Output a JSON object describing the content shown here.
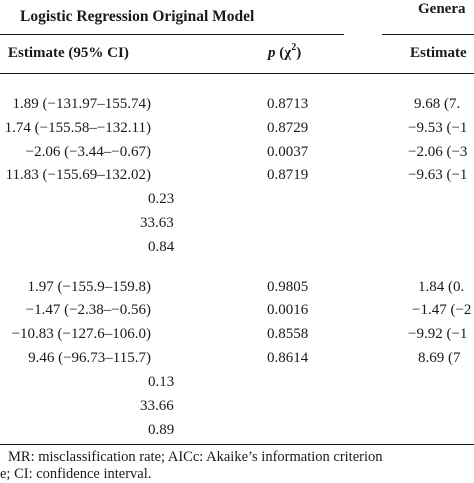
{
  "header": {
    "group1_title": "Logistic Regression Original Model",
    "group2_title_partial": "Genera",
    "col_estimate": "Estimate (95% CI)",
    "col_p_prefix": "p",
    "col_p_chi": "(χ",
    "col_p_sup": "2",
    "col_p_suffix": ")",
    "col_estimate2_partial": "Estimate"
  },
  "block1": {
    "rows": [
      {
        "estimate": "1.89 (−131.97–155.74)",
        "p": "0.8713",
        "est2": "9.68 (7."
      },
      {
        "estimate": "1.74 (−155.58–−132.11)",
        "p": "0.8729",
        "est2": "−9.53 (−1"
      },
      {
        "estimate": "−2.06 (−3.44–−0.67)",
        "p": "0.0037",
        "est2": "−2.06 (−3"
      },
      {
        "estimate": "11.83 (−155.69–132.02)",
        "p": "0.8719",
        "est2": "−9.63 (−1"
      }
    ],
    "stats": [
      "0.23",
      "33.63",
      "0.84"
    ]
  },
  "block2": {
    "rows": [
      {
        "estimate": "1.97 (−155.9–159.8)",
        "p": "0.9805",
        "est2": "1.84 (0."
      },
      {
        "estimate": "−1.47 (−2.38–−0.56)",
        "p": "0.0016",
        "est2": "−1.47 (−2"
      },
      {
        "estimate": "−10.83 (−127.6–106.0)",
        "p": "0.8558",
        "est2": "−9.92 (−1"
      },
      {
        "estimate": "9.46 (−96.73–115.7)",
        "p": "0.8614",
        "est2": "8.69 (7"
      }
    ],
    "stats": [
      "0.13",
      "33.66",
      "0.89"
    ]
  },
  "footnote": {
    "line1": "MR: misclassification rate; AICc: Akaike’s information criterion",
    "line2": "e; CI: confidence interval."
  }
}
